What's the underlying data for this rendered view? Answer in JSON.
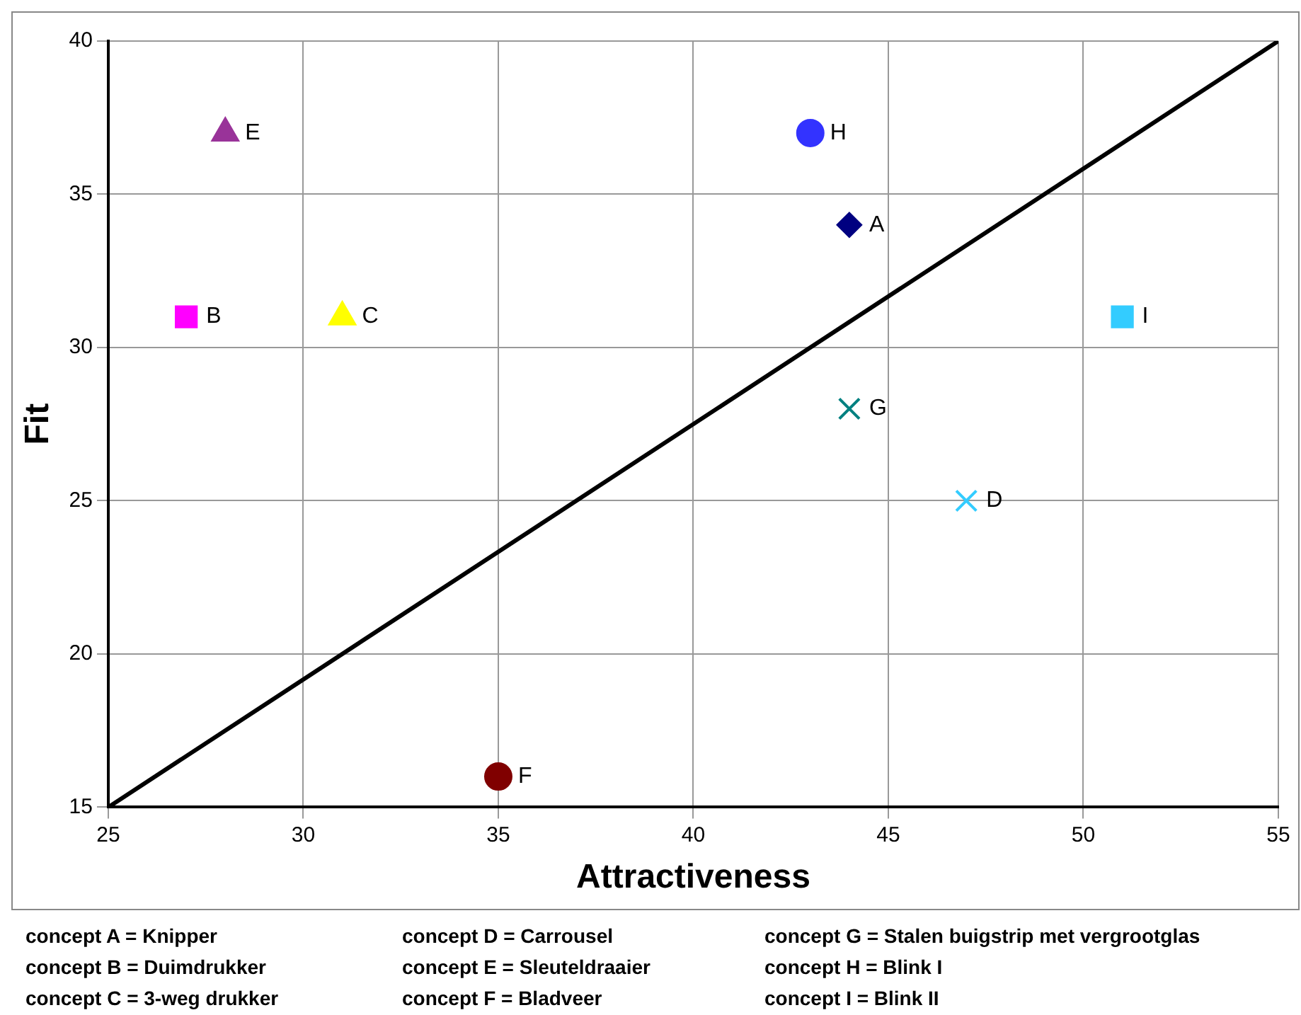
{
  "chart_data": {
    "type": "scatter",
    "xlabel": "Attractiveness",
    "ylabel": "Fit",
    "xlim": [
      25,
      55
    ],
    "xticks": [
      25,
      30,
      35,
      40,
      45,
      50,
      55
    ],
    "ylim": [
      15,
      40
    ],
    "yticks": [
      15,
      20,
      25,
      30,
      35,
      40
    ],
    "grid": true,
    "legend": false,
    "series": [
      {
        "name": "A",
        "color": "#000080",
        "marker": "diamond",
        "x": [
          44
        ],
        "values": [
          34
        ]
      },
      {
        "name": "B",
        "color": "#ff00ff",
        "marker": "square",
        "x": [
          27
        ],
        "values": [
          31
        ]
      },
      {
        "name": "C",
        "color": "#ffff00",
        "marker": "triangle",
        "x": [
          31
        ],
        "values": [
          31
        ]
      },
      {
        "name": "D",
        "color": "#33ccff",
        "marker": "cross",
        "x": [
          47
        ],
        "values": [
          25
        ]
      },
      {
        "name": "E",
        "color": "#993399",
        "marker": "triangle",
        "x": [
          28
        ],
        "values": [
          37
        ]
      },
      {
        "name": "F",
        "color": "#800000",
        "marker": "circle",
        "x": [
          35
        ],
        "values": [
          16
        ]
      },
      {
        "name": "G",
        "color": "#008080",
        "marker": "cross",
        "x": [
          44
        ],
        "values": [
          28
        ]
      },
      {
        "name": "H",
        "color": "#3333ff",
        "marker": "circle",
        "x": [
          43
        ],
        "values": [
          37
        ]
      },
      {
        "name": "I",
        "color": "#33ccff",
        "marker": "square",
        "x": [
          51
        ],
        "values": [
          31
        ]
      },
      {
        "type": "line",
        "color": "#000000",
        "marker": "none",
        "x": [
          25,
          55
        ],
        "values": [
          15,
          40
        ]
      }
    ],
    "annotations": [
      "concept A = Knipper",
      "concept B = Duimdrukker",
      "concept C = 3-weg drukker",
      "concept D = Carrousel",
      "concept E = Sleuteldraaier",
      "concept F = Bladveer",
      "concept G = Stalen buigstrip met vergrootglas",
      "concept H = Blink I",
      "concept I = Blink II"
    ]
  }
}
